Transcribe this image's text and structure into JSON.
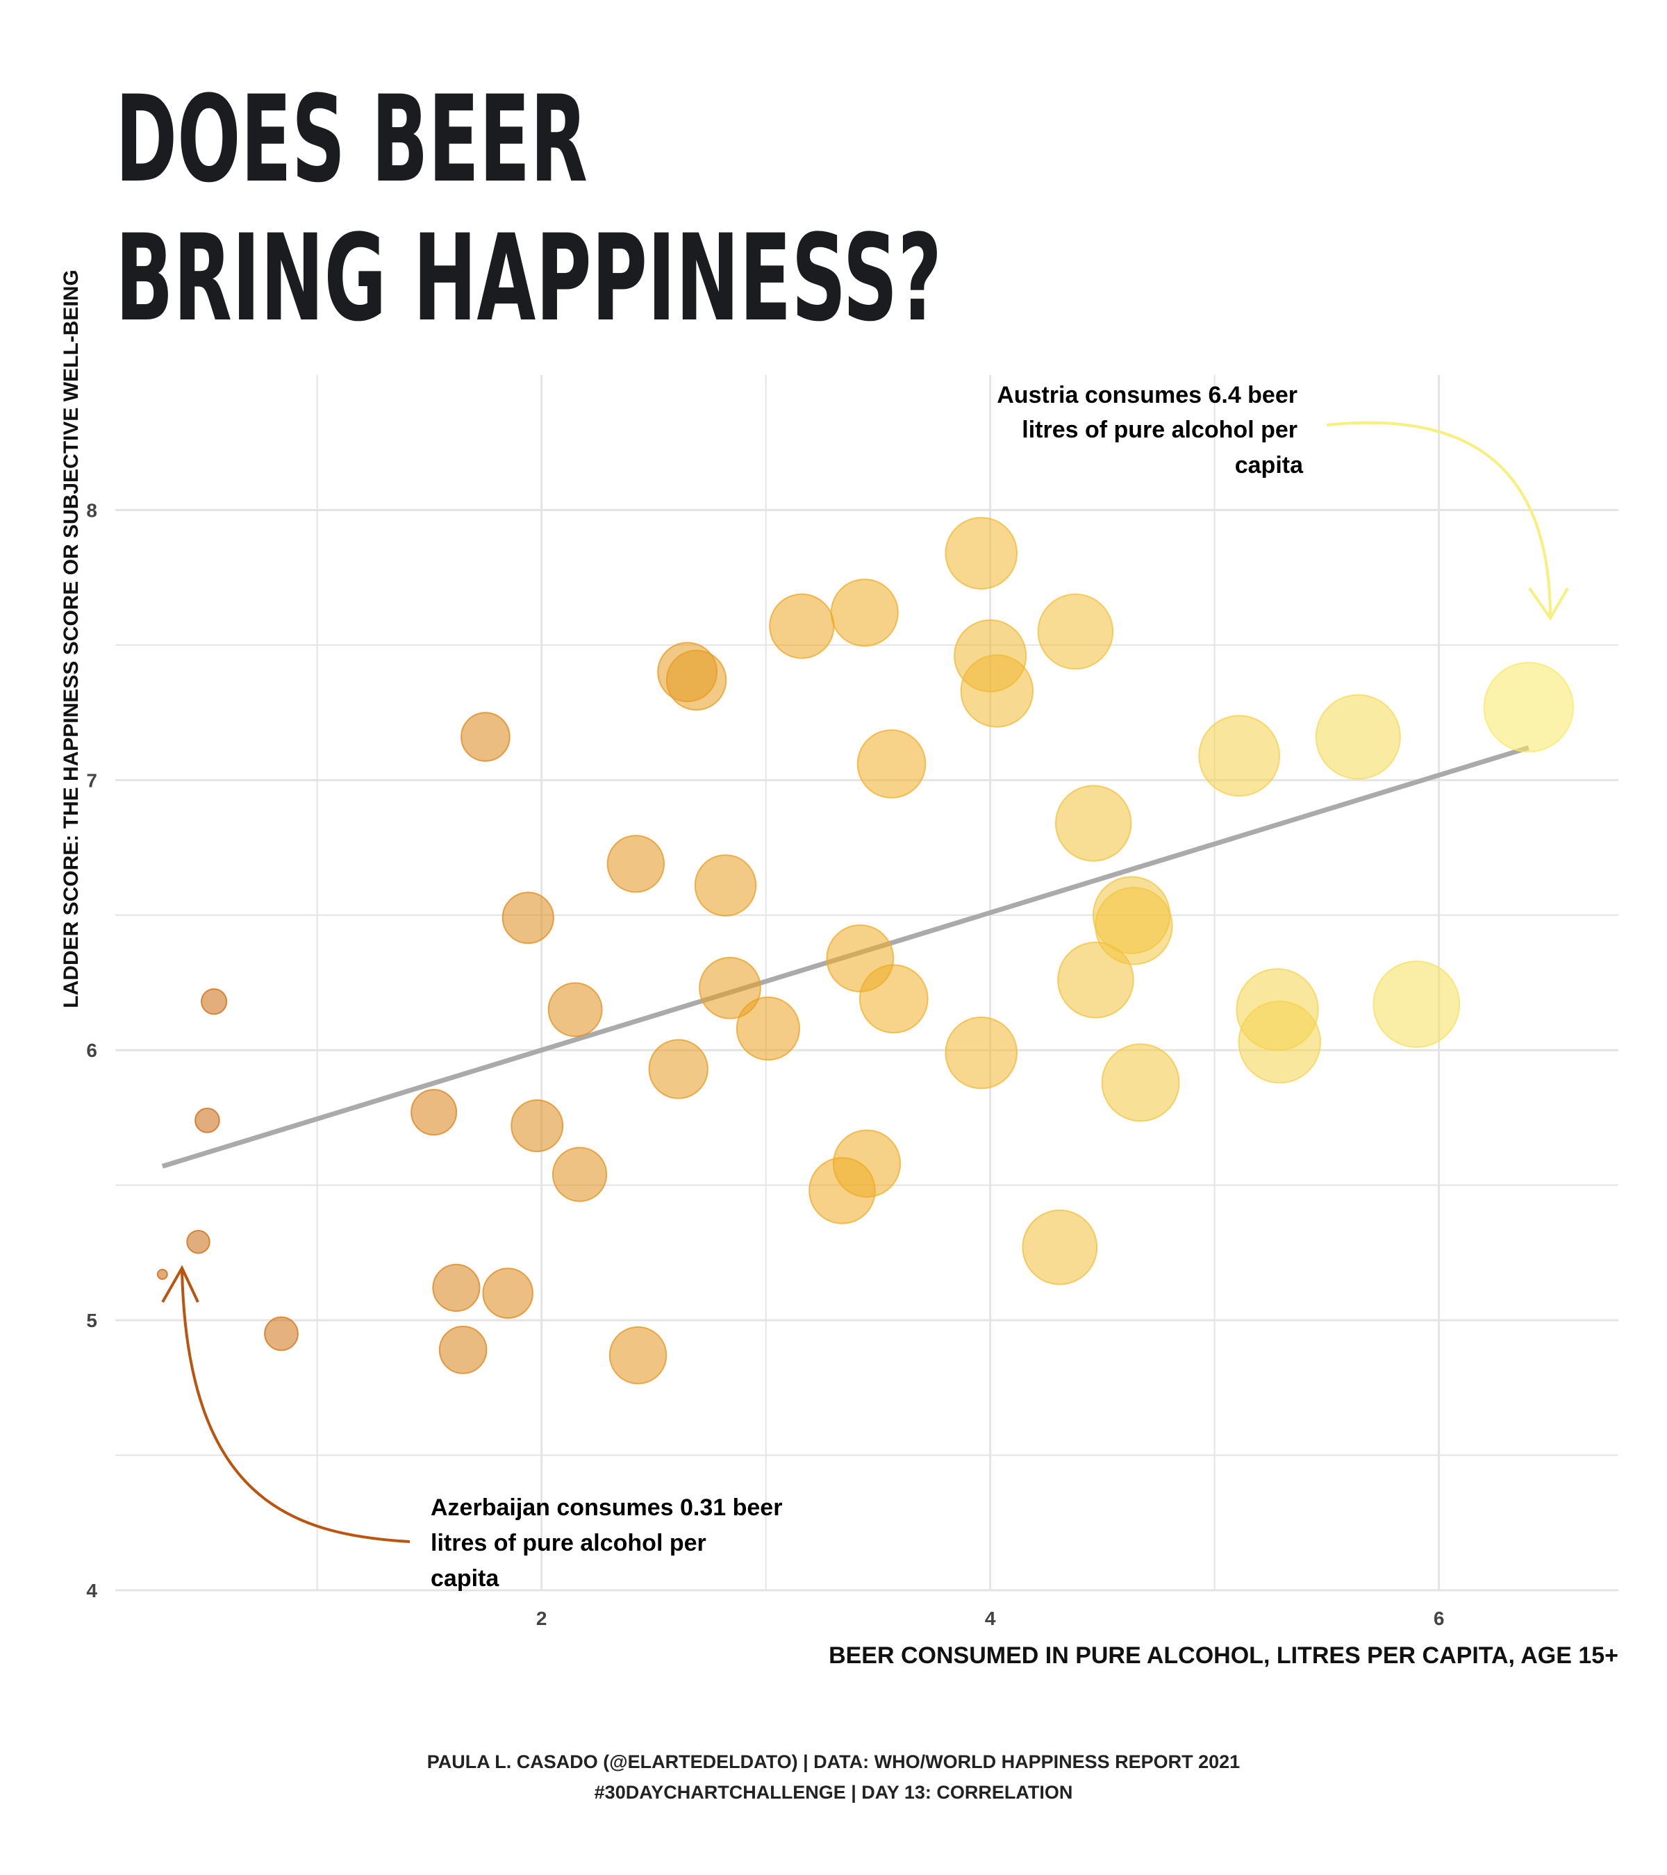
{
  "chart_data": {
    "type": "scatter",
    "title_lines": [
      "DOES BEER",
      "BRING HAPPINESS?"
    ],
    "xlabel": "BEER CONSUMED IN PURE ALCOHOL, LITRES PER CAPITA, AGE 15+",
    "ylabel": "LADDER SCORE: THE HAPPINESS SCORE OR SUBJECTIVE WELL-BEING",
    "xlim": [
      0.1,
      6.8
    ],
    "ylim": [
      4,
      8.5
    ],
    "x_ticks": [
      "2",
      "4",
      "6"
    ],
    "y_ticks": [
      "4",
      "5",
      "6",
      "7",
      "8"
    ],
    "grid": true,
    "size_and_color_encode": "x",
    "colors": {
      "low": "#c8650f",
      "mid": "#efab25",
      "high": "#f7ea67",
      "trend": "#aaaaaa",
      "grid": "#e4e4e4"
    },
    "points": [
      {
        "x": 0.31,
        "y": 5.17
      },
      {
        "x": 0.47,
        "y": 5.29
      },
      {
        "x": 0.51,
        "y": 5.74
      },
      {
        "x": 0.54,
        "y": 6.18
      },
      {
        "x": 0.84,
        "y": 4.95
      },
      {
        "x": 1.52,
        "y": 5.77
      },
      {
        "x": 1.62,
        "y": 5.12
      },
      {
        "x": 1.65,
        "y": 4.89
      },
      {
        "x": 1.75,
        "y": 7.16
      },
      {
        "x": 1.85,
        "y": 5.1
      },
      {
        "x": 1.94,
        "y": 6.49
      },
      {
        "x": 1.98,
        "y": 5.72
      },
      {
        "x": 2.15,
        "y": 6.15
      },
      {
        "x": 2.17,
        "y": 5.54
      },
      {
        "x": 2.42,
        "y": 6.69
      },
      {
        "x": 2.43,
        "y": 4.87
      },
      {
        "x": 2.61,
        "y": 5.93
      },
      {
        "x": 2.65,
        "y": 7.4
      },
      {
        "x": 2.69,
        "y": 7.37
      },
      {
        "x": 2.82,
        "y": 6.61
      },
      {
        "x": 2.84,
        "y": 6.23
      },
      {
        "x": 3.01,
        "y": 6.08
      },
      {
        "x": 3.16,
        "y": 7.57
      },
      {
        "x": 3.34,
        "y": 5.48
      },
      {
        "x": 3.42,
        "y": 6.34
      },
      {
        "x": 3.44,
        "y": 7.62
      },
      {
        "x": 3.45,
        "y": 5.58
      },
      {
        "x": 3.56,
        "y": 7.06
      },
      {
        "x": 3.57,
        "y": 6.19
      },
      {
        "x": 3.96,
        "y": 7.84
      },
      {
        "x": 3.96,
        "y": 5.99
      },
      {
        "x": 4.0,
        "y": 7.46
      },
      {
        "x": 4.03,
        "y": 7.33
      },
      {
        "x": 4.31,
        "y": 5.27
      },
      {
        "x": 4.38,
        "y": 7.55
      },
      {
        "x": 4.46,
        "y": 6.84
      },
      {
        "x": 4.47,
        "y": 6.26
      },
      {
        "x": 4.63,
        "y": 6.5
      },
      {
        "x": 4.64,
        "y": 6.46
      },
      {
        "x": 4.67,
        "y": 5.88
      },
      {
        "x": 5.11,
        "y": 7.09
      },
      {
        "x": 5.28,
        "y": 6.15
      },
      {
        "x": 5.29,
        "y": 6.03
      },
      {
        "x": 5.64,
        "y": 7.16
      },
      {
        "x": 5.9,
        "y": 6.17
      },
      {
        "x": 6.4,
        "y": 7.27
      }
    ],
    "trendline": {
      "x0": 0.31,
      "y0": 5.57,
      "x1": 6.4,
      "y1": 7.12
    },
    "annotations": [
      {
        "lines": [
          "Austria consumes 6.4 beer",
          "litres of pure alcohol per",
          "capita"
        ],
        "point": {
          "x": 6.4,
          "y": 7.27
        },
        "color": "#f7ef7e"
      },
      {
        "lines": [
          "Azerbaijan consumes 0.31 beer",
          "litres of pure alcohol per",
          "capita"
        ],
        "point": {
          "x": 0.31,
          "y": 5.17
        },
        "color": "#b9550f"
      }
    ]
  },
  "caption": {
    "line1": "PAULA L. CASADO (@ELARTEDELDATO) | DATA: WHO/WORLD HAPPINESS REPORT 2021",
    "line2": "#30DAYCHARTCHALLENGE | DAY 13: CORRELATION"
  }
}
